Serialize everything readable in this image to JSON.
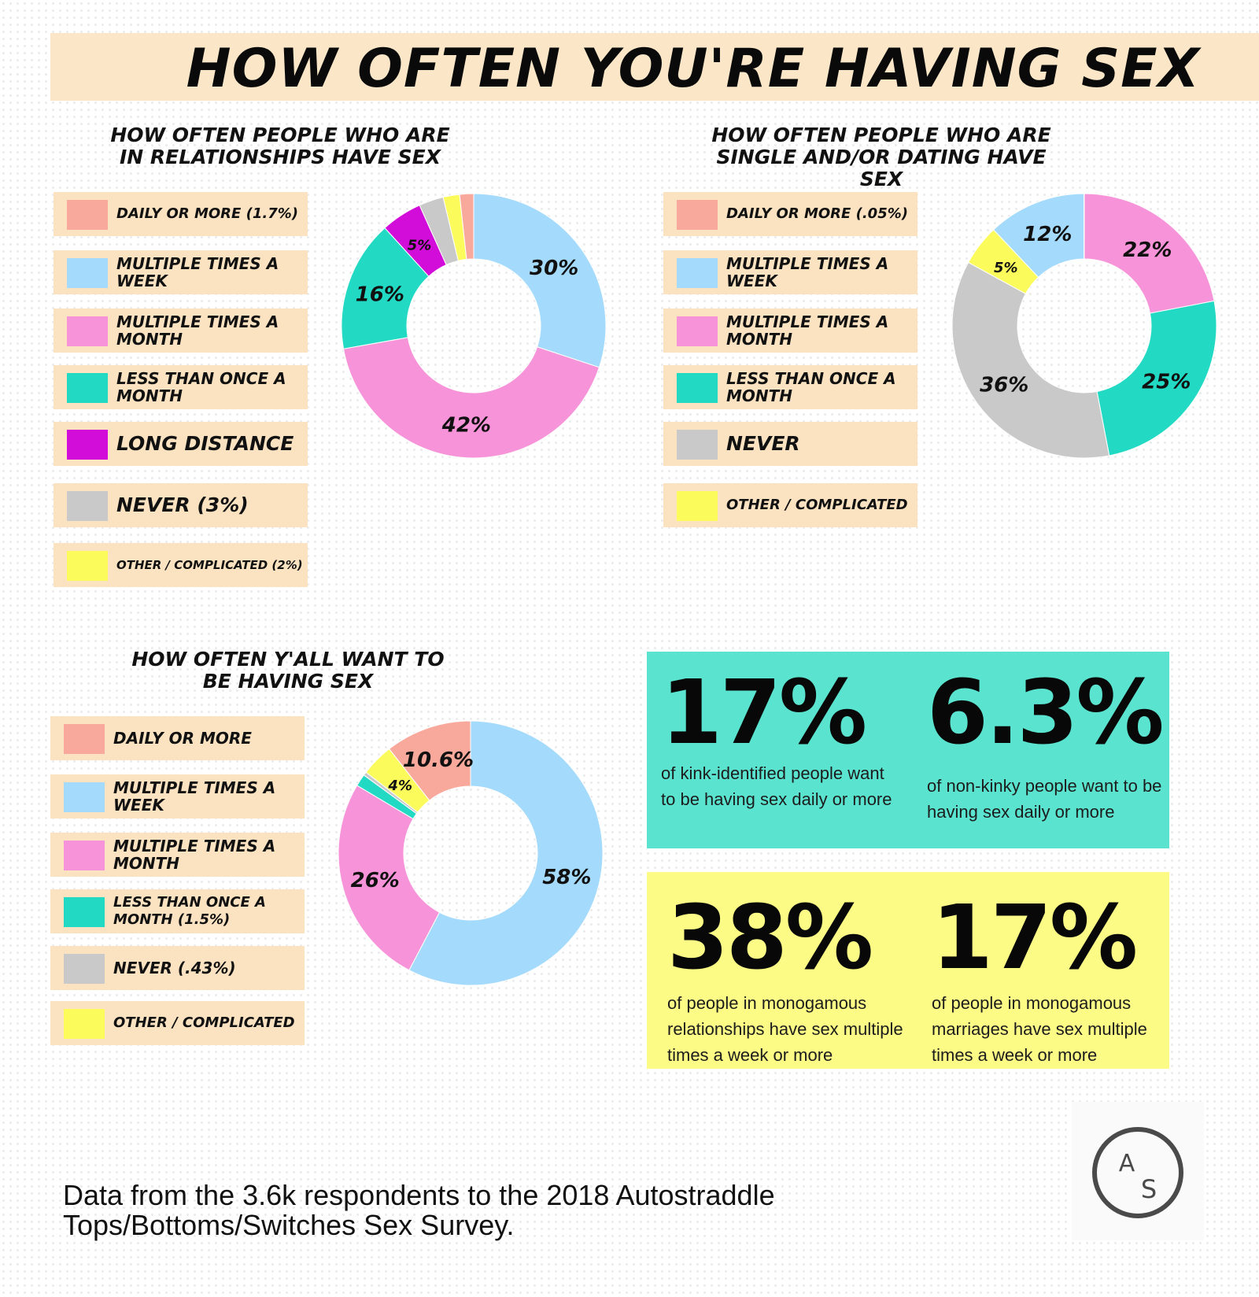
{
  "title": "HOW OFTEN YOU'RE HAVING SEX",
  "colors": {
    "daily": "#f9a89c",
    "weekly": "#a4dafb",
    "monthly": "#f794d9",
    "less_monthly": "#22dac4",
    "long_distance": "#d20cd9",
    "never": "#c9c9c9",
    "other": "#fcfb5c",
    "teal_box": "#5ae4d0",
    "yellow_box": "#fbfb86"
  },
  "legends": {
    "relationships": [
      {
        "label": "DAILY OR MORE (1.7%)",
        "color": "#f9a89c"
      },
      {
        "label": "MULTIPLE TIMES A WEEK",
        "color": "#a4dafb"
      },
      {
        "label": "MULTIPLE TIMES A MONTH",
        "color": "#f794d9"
      },
      {
        "label": "LESS THAN ONCE A MONTH",
        "color": "#22dac4"
      },
      {
        "label": "LONG DISTANCE",
        "color": "#d20cd9"
      },
      {
        "label": "NEVER (3%)",
        "color": "#c9c9c9"
      },
      {
        "label": "OTHER / COMPLICATED (2%)",
        "color": "#fcfb5c"
      }
    ],
    "single": [
      {
        "label": "DAILY OR MORE (.05%)",
        "color": "#f9a89c"
      },
      {
        "label": "MULTIPLE TIMES A WEEK",
        "color": "#a4dafb"
      },
      {
        "label": "MULTIPLE TIMES A MONTH",
        "color": "#f794d9"
      },
      {
        "label": "LESS THAN ONCE A MONTH",
        "color": "#22dac4"
      },
      {
        "label": "NEVER",
        "color": "#c9c9c9"
      },
      {
        "label": "OTHER / COMPLICATED",
        "color": "#fcfb5c"
      }
    ],
    "want": [
      {
        "label": "DAILY OR MORE",
        "color": "#f9a89c"
      },
      {
        "label": "MULTIPLE TIMES A WEEK",
        "color": "#a4dafb"
      },
      {
        "label": "MULTIPLE TIMES A MONTH",
        "color": "#f794d9"
      },
      {
        "label": "LESS THAN ONCE A MONTH (1.5%)",
        "color": "#22dac4"
      },
      {
        "label": "NEVER (.43%)",
        "color": "#c9c9c9"
      },
      {
        "label": "OTHER / COMPLICATED",
        "color": "#fcfb5c"
      }
    ]
  },
  "chart_data": [
    {
      "type": "pie",
      "title": "HOW OFTEN PEOPLE WHO ARE IN RELATIONSHIPS HAVE SEX",
      "categories": [
        "Multiple times a week",
        "Multiple times a month",
        "Less than once a month",
        "Long distance",
        "Never",
        "Other / complicated",
        "Daily or more"
      ],
      "values": [
        30,
        42,
        16,
        5,
        3,
        2,
        1.7
      ],
      "data_labels": [
        "30%",
        "42%",
        "16%",
        "5%",
        "",
        "",
        ""
      ],
      "colors": [
        "#a4dafb",
        "#f794d9",
        "#22dac4",
        "#d20cd9",
        "#c9c9c9",
        "#fcfb5c",
        "#f9a89c"
      ],
      "donut": true
    },
    {
      "type": "pie",
      "title": "HOW OFTEN PEOPLE WHO ARE SINGLE AND/OR DATING HAVE SEX",
      "categories": [
        "Multiple times a month",
        "Less than once a month",
        "Never",
        "Other / complicated",
        "Multiple times a week",
        "Daily or more"
      ],
      "values": [
        22,
        25,
        36,
        5,
        12,
        0.05
      ],
      "data_labels": [
        "22%",
        "25%",
        "36%",
        "5%",
        "12%",
        ""
      ],
      "colors": [
        "#f794d9",
        "#22dac4",
        "#c9c9c9",
        "#fcfb5c",
        "#a4dafb",
        "#f9a89c"
      ],
      "donut": true
    },
    {
      "type": "pie",
      "title": "HOW OFTEN Y'ALL WANT TO BE HAVING SEX",
      "categories": [
        "Multiple times a week",
        "Multiple times a month",
        "Less than once a month",
        "Never",
        "Other / complicated",
        "Daily or more"
      ],
      "values": [
        58,
        26,
        1.5,
        0.43,
        4,
        10.6
      ],
      "data_labels": [
        "58%",
        "26%",
        "",
        "",
        "4%",
        "10.6%"
      ],
      "colors": [
        "#a4dafb",
        "#f794d9",
        "#22dac4",
        "#c9c9c9",
        "#fcfb5c",
        "#f9a89c"
      ],
      "donut": true
    }
  ],
  "stats": {
    "kink": {
      "value": "17%",
      "text": "of kink-identified people want to be having sex daily or more"
    },
    "nonkink": {
      "value": "6.3%",
      "text": "of non-kinky people want to be having sex daily or more"
    },
    "mono_rel": {
      "value": "38%",
      "text": "of people in monogamous relationships have sex multiple times a week or more"
    },
    "mono_mar": {
      "value": "17%",
      "text": "of people in monogamous marriages have sex multiple times a week or more"
    }
  },
  "footer": "Data from the 3.6k respondents to the 2018 Autostraddle Tops/Bottoms/Switches Sex Survey.",
  "logo": {
    "letter_top": "A",
    "letter_bottom": "S"
  }
}
